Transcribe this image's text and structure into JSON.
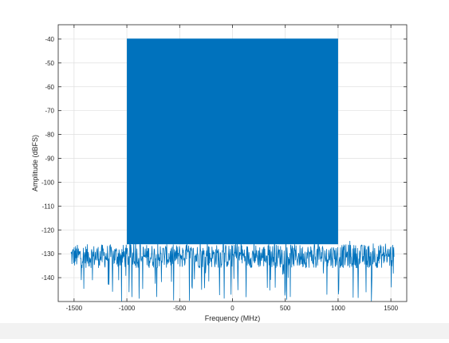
{
  "chart_data": {
    "type": "line",
    "title": "",
    "xlabel": "Frequency (MHz)",
    "ylabel": "Amplitude (dBFS)",
    "xlim": [
      -1650,
      1650
    ],
    "ylim": [
      -150,
      -34
    ],
    "xticks": [
      -1500,
      -1000,
      -500,
      0,
      500,
      1000,
      1500
    ],
    "yticks": [
      -40,
      -50,
      -60,
      -70,
      -80,
      -90,
      -100,
      -110,
      -120,
      -130,
      -140
    ],
    "grid": true,
    "series_color": "#0072bd",
    "series": [
      {
        "passband": {
          "x": [
            -1000,
            1000
          ],
          "level": -40
        },
        "noise_floor": {
          "x": [
            -1530,
            1530
          ],
          "typical_range": [
            -136,
            -126
          ],
          "min": -150
        }
      }
    ]
  }
}
